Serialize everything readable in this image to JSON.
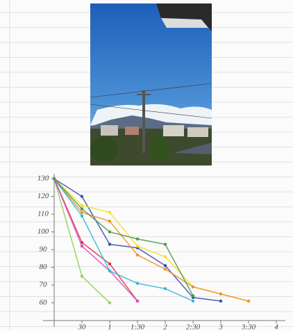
{
  "chart_data": {
    "type": "line",
    "x": [
      0,
      30,
      60,
      90,
      120,
      150,
      180,
      210
    ],
    "xlim": [
      0,
      240
    ],
    "xticks": [
      30,
      {
        "value": 60,
        "label": "1"
      },
      {
        "value": 90,
        "label": "1:30"
      },
      {
        "value": 120,
        "label": "2"
      },
      {
        "value": 150,
        "label": "2:30"
      },
      {
        "value": 180,
        "label": "3"
      },
      {
        "value": 210,
        "label": "3:30"
      },
      {
        "value": 240,
        "label": "4"
      }
    ],
    "ylim": [
      50,
      130
    ],
    "yticks": [
      60,
      70,
      80,
      90,
      100,
      110,
      120,
      130
    ],
    "series": [
      {
        "color": "#8fd14f",
        "values": [
          130,
          75,
          60,
          null,
          null,
          null,
          null,
          null
        ]
      },
      {
        "color": "#3a4fb0",
        "values": [
          130,
          120,
          93,
          91,
          81,
          63,
          61,
          null
        ]
      },
      {
        "color": "#f2e227",
        "values": [
          130,
          115,
          111,
          92,
          86,
          69,
          65,
          61
        ]
      },
      {
        "color": "#f0902a",
        "values": [
          130,
          111,
          106,
          87,
          79,
          69,
          65,
          61
        ]
      },
      {
        "color": "#e0304a",
        "values": [
          130,
          94,
          82,
          61,
          null,
          null,
          null,
          null
        ]
      },
      {
        "color": "#d34fc0",
        "values": [
          130,
          92,
          78,
          61,
          null,
          null,
          null,
          null
        ]
      },
      {
        "color": "#36b7d8",
        "values": [
          130,
          109,
          78,
          71,
          68,
          61,
          null,
          null
        ]
      },
      {
        "color": "#4f9a4a",
        "values": [
          130,
          113,
          100,
          96,
          93,
          64,
          null,
          null
        ]
      }
    ]
  }
}
